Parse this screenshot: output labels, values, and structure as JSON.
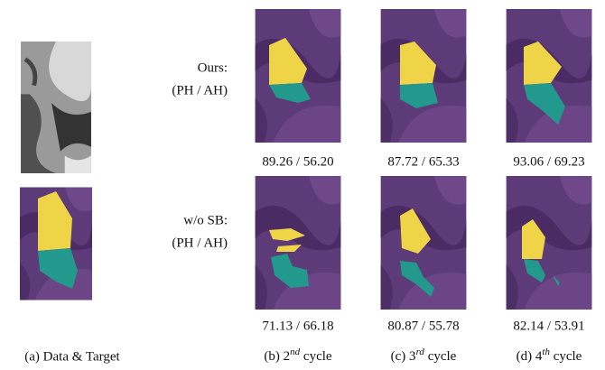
{
  "rows": [
    {
      "name": "Ours:",
      "metrics": "(PH / AH)",
      "scores": [
        "89.26 / 56.20",
        "87.72 / 65.33",
        "93.06 / 69.23"
      ]
    },
    {
      "name": "w/o SB:",
      "metrics": "(PH / AH)",
      "scores": [
        "71.13 / 66.18",
        "80.87 / 55.78",
        "82.14 / 53.91"
      ]
    }
  ],
  "captions": [
    {
      "prefix": "(a) Data & Target"
    },
    {
      "prefix": "(b) 2",
      "sup": "nd",
      "suffix": " cycle"
    },
    {
      "prefix": "(c) 3",
      "sup": "rd",
      "suffix": " cycle"
    },
    {
      "prefix": "(d) 4",
      "sup": "th",
      "suffix": " cycle"
    }
  ]
}
